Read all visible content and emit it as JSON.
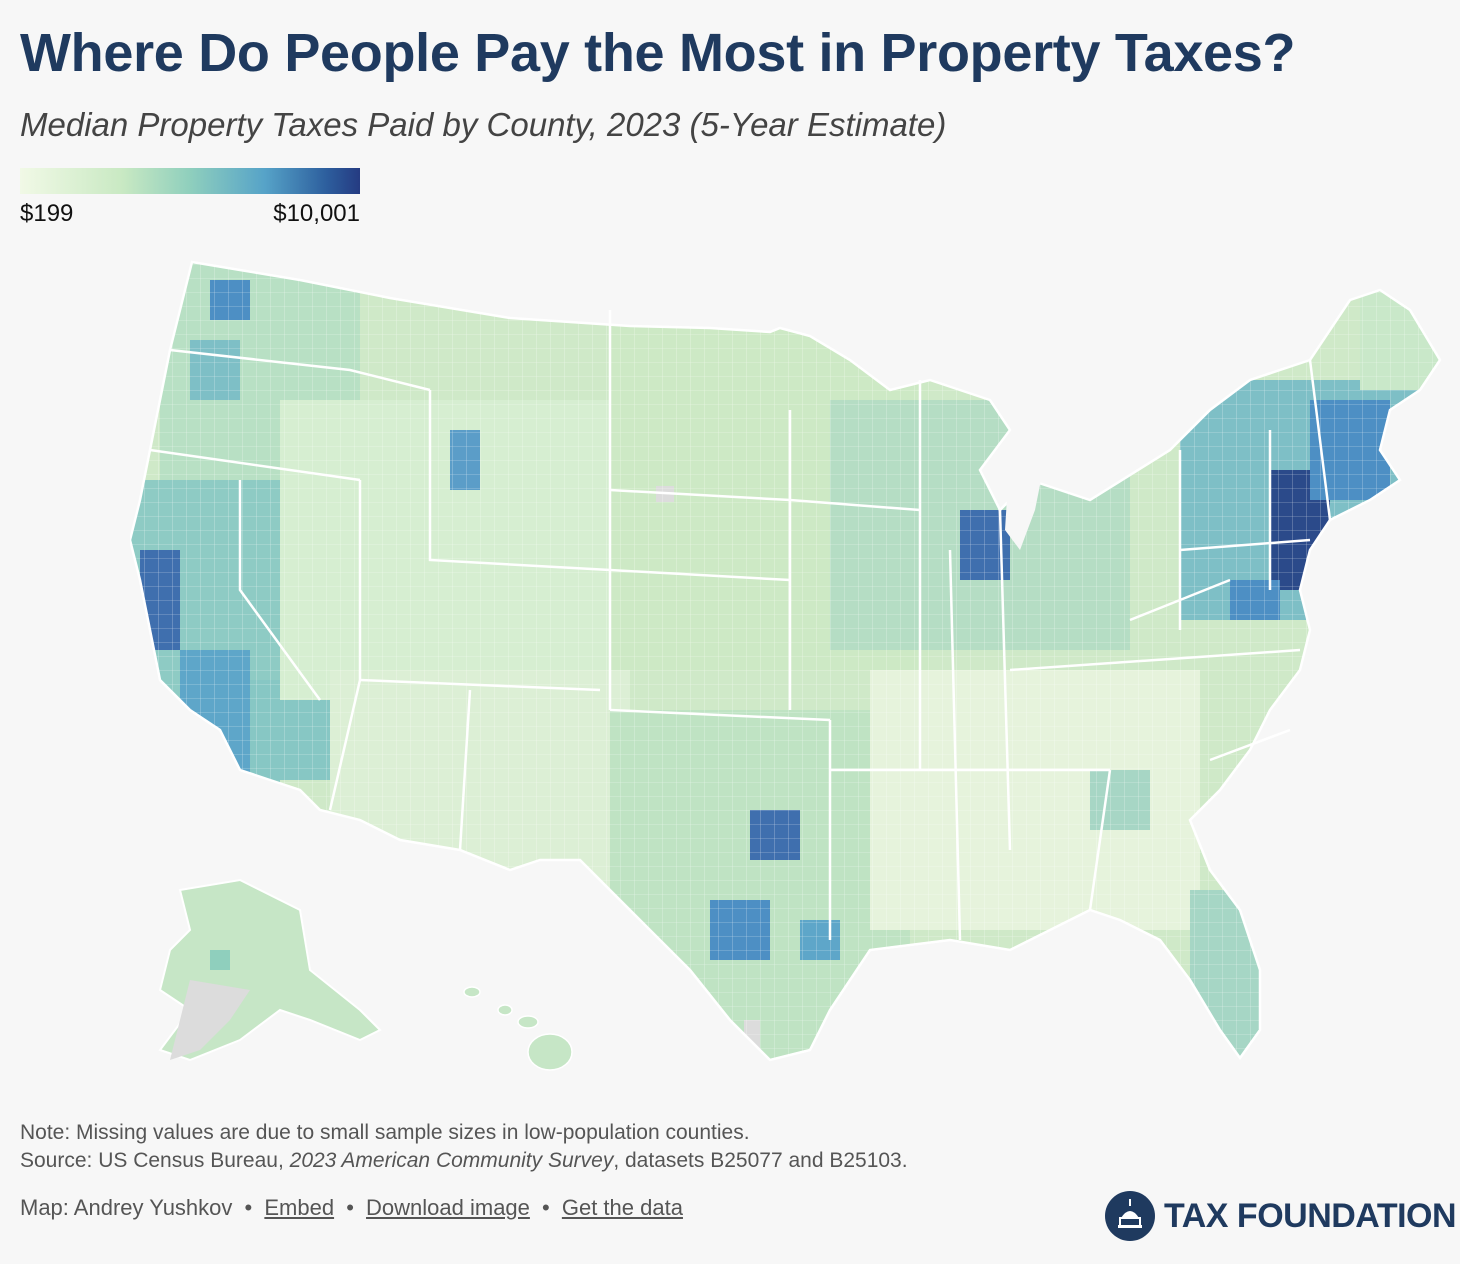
{
  "header": {
    "title": "Where Do People Pay the Most in Property Taxes?",
    "subtitle": "Median Property Taxes Paid by County, 2023 (5-Year Estimate)"
  },
  "legend": {
    "min_label": "$199",
    "max_label": "$10,001",
    "colors": [
      "#f1f9e6",
      "#c9e9c3",
      "#8fcfbd",
      "#56a3c8",
      "#2d5f9e",
      "#253b82"
    ]
  },
  "map": {
    "missing_color": "#dcdcdc",
    "border_color": "#ffffff"
  },
  "notes": {
    "note": "Note: Missing values are due to small sample sizes in low-population counties.",
    "source_prefix": "Source: US Census Bureau, ",
    "source_survey": "2023 American Community Survey",
    "source_suffix": ", datasets B25077 and B25103."
  },
  "footer": {
    "credit": "Map: Andrey Yushkov",
    "embed_label": "Embed",
    "download_label": "Download image",
    "data_label": "Get the data",
    "bullet": "•"
  },
  "brand": {
    "name": "TAX FOUNDATION",
    "color": "#1f3a5f"
  }
}
